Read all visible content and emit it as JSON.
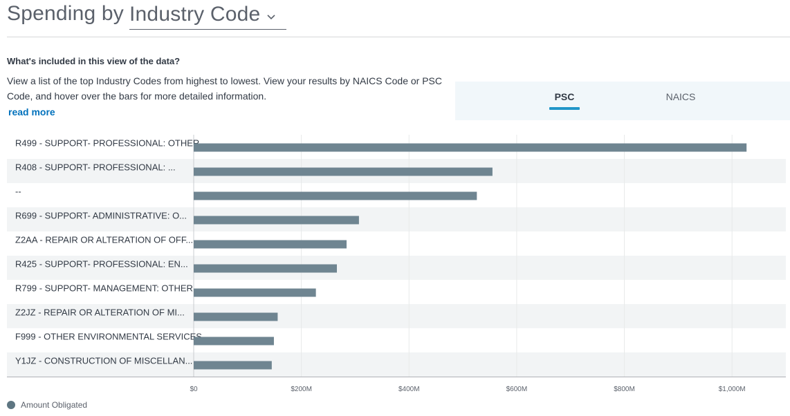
{
  "header": {
    "title_prefix": "Spending by",
    "dimension_selector": {
      "selected": "Industry Code",
      "icon": "chevron-down-icon"
    }
  },
  "info": {
    "heading": "What's included in this view of the data?",
    "body": "View a list of the top Industry Codes from highest to lowest. View your results by NAICS Code or PSC Code, and hover over the bars for more detailed information.",
    "read_more": "read more"
  },
  "tabs": [
    {
      "label": "PSC",
      "active": true
    },
    {
      "label": "NAICS",
      "active": false
    }
  ],
  "legend": {
    "label": "Amount Obligated",
    "color": "#5e7682"
  },
  "colors": {
    "bar": "#6f8591",
    "row_shade": "#f2f4f5",
    "accent": "#2196c8"
  },
  "chart_data": {
    "type": "bar",
    "orientation": "horizontal",
    "categories": [
      "R499 - SUPPORT- PROFESSIONAL: OTHER",
      "R408 - SUPPORT- PROFESSIONAL: ...",
      "--",
      "R699 - SUPPORT- ADMINISTRATIVE: O...",
      "Z2AA - REPAIR OR ALTERATION OF OFF...",
      "R425 - SUPPORT- PROFESSIONAL: EN...",
      "R799 - SUPPORT- MANAGEMENT: OTHER",
      "Z2JZ - REPAIR OR ALTERATION OF MI...",
      "F999 - OTHER ENVIRONMENTAL SERVICES",
      "Y1JZ - CONSTRUCTION OF MISCELLAN..."
    ],
    "series": [
      {
        "name": "Amount Obligated",
        "values": [
          1027,
          555,
          526,
          307,
          284,
          266,
          227,
          156,
          149,
          145
        ]
      }
    ],
    "units": "millions USD",
    "xlim": [
      0,
      1100
    ],
    "ticks": [
      {
        "value": 0,
        "label": "$0"
      },
      {
        "value": 200,
        "label": "$200M"
      },
      {
        "value": 400,
        "label": "$400M"
      },
      {
        "value": 600,
        "label": "$600M"
      },
      {
        "value": 800,
        "label": "$800M"
      },
      {
        "value": 1000,
        "label": "$1,000M"
      }
    ],
    "grid": true,
    "legend_position": "bottom-left"
  }
}
